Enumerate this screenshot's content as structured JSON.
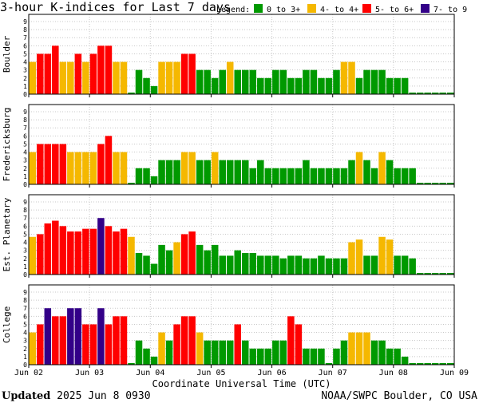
{
  "chart_data": {
    "type": "bar",
    "title": "3-hour K-indices for Last 7 days",
    "legend": {
      "label": "Legend:",
      "items": [
        {
          "label": "0 to 3+",
          "color": "#009900"
        },
        {
          "label": "4- to 4+",
          "color": "#f5b800"
        },
        {
          "label": "5- to 6+",
          "color": "#ff0000"
        },
        {
          "label": "7- to 9",
          "color": "#330088"
        }
      ]
    },
    "xlabel": "Coordinate Universal Time (UTC)",
    "x_ticks": [
      "Jun 02",
      "Jun 03",
      "Jun 04",
      "Jun 05",
      "Jun 06",
      "Jun 07",
      "Jun 08",
      "Jun 09"
    ],
    "ylim": [
      0,
      9
    ],
    "y_ticks": [
      "0",
      "1",
      "2",
      "3",
      "4",
      "5",
      "6",
      "7",
      "8",
      "9"
    ],
    "grid": true,
    "panels": [
      {
        "name": "Boulder",
        "values": [
          4,
          5,
          5,
          6,
          4,
          4,
          5,
          4,
          5,
          6,
          6,
          4,
          4,
          0,
          3,
          2,
          1,
          4,
          4,
          4,
          5,
          5,
          3,
          3,
          2,
          3,
          4,
          3,
          3,
          3,
          2,
          2,
          3,
          3,
          2,
          2,
          3,
          3,
          2,
          2,
          3,
          4,
          4,
          2,
          3,
          3,
          3,
          2,
          2,
          2,
          0,
          0,
          0,
          0,
          0,
          0
        ]
      },
      {
        "name": "Fredericksburg",
        "values": [
          4,
          5,
          5,
          5,
          5,
          4,
          4,
          4,
          4,
          5,
          6,
          4,
          4,
          0,
          2,
          2,
          1,
          3,
          3,
          3,
          4,
          4,
          3,
          3,
          4,
          3,
          3,
          3,
          3,
          2,
          3,
          2,
          2,
          2,
          2,
          2,
          3,
          2,
          2,
          2,
          2,
          2,
          3,
          4,
          3,
          2,
          4,
          3,
          2,
          2,
          2,
          0,
          0,
          0,
          0,
          0
        ]
      },
      {
        "name": "Est. Planetary",
        "values": [
          4.67,
          5,
          6.33,
          6.67,
          6,
          5.33,
          5.33,
          5.67,
          5.67,
          7,
          6,
          5.33,
          5.67,
          4.67,
          2.67,
          2.33,
          1.33,
          3.67,
          3,
          4,
          5,
          5.33,
          3.67,
          3,
          3.67,
          2.33,
          2.33,
          3,
          2.67,
          2.67,
          2.33,
          2.33,
          2.33,
          2,
          2.33,
          2.33,
          2,
          2,
          2.33,
          2,
          2,
          2,
          4,
          4.33,
          2.33,
          2.33,
          4.67,
          4.33,
          2.33,
          2.33,
          2,
          0,
          0,
          0,
          0,
          0
        ]
      },
      {
        "name": "College",
        "values": [
          4,
          5,
          7,
          6,
          6,
          7,
          7,
          5,
          5,
          7,
          5,
          6,
          6,
          0,
          3,
          2,
          1,
          4,
          3,
          5,
          6,
          6,
          4,
          3,
          3,
          3,
          3,
          5,
          3,
          2,
          2,
          2,
          3,
          3,
          6,
          5,
          2,
          2,
          2,
          0,
          2,
          3,
          4,
          4,
          4,
          3,
          3,
          2,
          2,
          1,
          0,
          0,
          0,
          0,
          0,
          0
        ]
      }
    ]
  },
  "footer": {
    "updated_label": "Updated",
    "updated_time": "2025 Jun  8 0930",
    "source": "NOAA/SWPC Boulder, CO USA"
  }
}
